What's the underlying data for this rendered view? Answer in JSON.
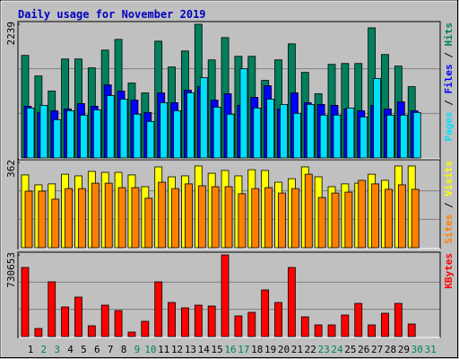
{
  "title": "Daily usage for November 2019",
  "legend_separator": "/",
  "chart_data": [
    {
      "type": "bar",
      "ylim": [
        0,
        2239
      ],
      "yticks": [
        2239
      ],
      "series": [
        {
          "name": "Hits",
          "color": "#00805c",
          "values": [
            1717,
            1373,
            1120,
            1657,
            1657,
            1508,
            1806,
            1985,
            1254,
            1090,
            1956,
            1523,
            1791,
            2239,
            1642,
            2015,
            1702,
            1702,
            1299,
            1642,
            1911,
            1433,
            1075,
            1567,
            1582,
            1582,
            2179,
            1732,
            1538,
            1194,
            null
          ]
        },
        {
          "name": "Files",
          "color": "#0000ff",
          "values": [
            866,
            761,
            791,
            821,
            911,
            866,
            1224,
            1120,
            970,
            761,
            1090,
            926,
            1135,
            1194,
            970,
            1075,
            881,
            1015,
            1209,
            821,
            1090,
            926,
            896,
            881,
            821,
            791,
            881,
            821,
            941,
            791,
            null
          ]
        },
        {
          "name": "Pages",
          "color": "#00e0ff",
          "values": [
            836,
            881,
            642,
            791,
            717,
            806,
            1045,
            985,
            732,
            612,
            926,
            791,
            1090,
            1344,
            851,
            732,
            1493,
            836,
            985,
            896,
            747,
            896,
            717,
            717,
            836,
            687,
            1329,
            717,
            717,
            761,
            null
          ]
        }
      ]
    },
    {
      "type": "bar",
      "ylim": [
        0,
        362
      ],
      "yticks": [
        362
      ],
      "series": [
        {
          "name": "Visits",
          "color": "#ffff00",
          "values": [
            309,
            267,
            271,
            312,
            305,
            324,
            320,
            320,
            309,
            259,
            343,
            301,
            305,
            347,
            316,
            328,
            305,
            331,
            328,
            278,
            293,
            343,
            301,
            259,
            271,
            274,
            312,
            286,
            347,
            347,
            null
          ]
        },
        {
          "name": "Sites",
          "color": "#ff8000",
          "values": [
            240,
            240,
            206,
            251,
            251,
            274,
            274,
            255,
            255,
            210,
            278,
            251,
            271,
            263,
            259,
            259,
            229,
            251,
            255,
            232,
            251,
            312,
            213,
            232,
            236,
            286,
            271,
            248,
            267,
            248,
            null
          ]
        }
      ]
    },
    {
      "type": "bar",
      "ylim": [
        0,
        730653
      ],
      "yticks": [
        730653
      ],
      "categories": [
        "1",
        "2",
        "3",
        "4",
        "5",
        "6",
        "7",
        "8",
        "9",
        "10",
        "11",
        "12",
        "13",
        "14",
        "15",
        "16",
        "17",
        "18",
        "19",
        "20",
        "21",
        "22",
        "23",
        "24",
        "25",
        "26",
        "27",
        "28",
        "29",
        "30",
        "31"
      ],
      "category_colors": [
        "#000000",
        "#00805c",
        "#00805c",
        "#000000",
        "#000000",
        "#000000",
        "#000000",
        "#000000",
        "#00805c",
        "#00805c",
        "#000000",
        "#000000",
        "#000000",
        "#000000",
        "#000000",
        "#00805c",
        "#00805c",
        "#000000",
        "#000000",
        "#000000",
        "#000000",
        "#000000",
        "#00805c",
        "#00805c",
        "#000000",
        "#000000",
        "#000000",
        "#000000",
        "#000000",
        "#00805c",
        "#00805c"
      ],
      "series": [
        {
          "name": "KBytes",
          "color": "#ff0000",
          "values": [
            618233,
            72261,
            489769,
            264957,
            353276,
            96348,
            281015,
            232841,
            40145,
            136493,
            489769,
            305102,
            256928,
            281015,
            272986,
            730653,
            184667,
            216783,
            417508,
            305102,
            618233,
            176638,
            104377,
            104377,
            192696,
            297073,
            104377,
            208754,
            297073,
            112406,
            null
          ]
        }
      ]
    }
  ]
}
